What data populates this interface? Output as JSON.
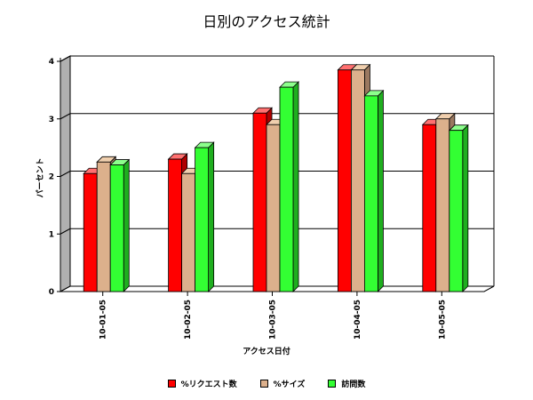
{
  "chart_data": {
    "type": "bar",
    "title": "日別のアクセス統計",
    "xlabel": "アクセス日付",
    "ylabel": "パーセント",
    "ylim": [
      0,
      4
    ],
    "yticks": [
      0,
      1,
      2,
      3,
      4
    ],
    "categories": [
      "10-01-05",
      "10-02-05",
      "10-03-05",
      "10-04-05",
      "10-05-05"
    ],
    "series": [
      {
        "name": "%リクエスト数",
        "values": [
          2.05,
          2.3,
          3.1,
          3.85,
          2.9
        ],
        "color": "#ff0000",
        "side": "#b00000",
        "top": "#ff7070"
      },
      {
        "name": "%サイズ",
        "values": [
          2.25,
          2.05,
          2.9,
          3.85,
          3.0
        ],
        "color": "#dcb08c",
        "side": "#9a7860",
        "top": "#f0cfae"
      },
      {
        "name": "訪問数",
        "values": [
          2.2,
          2.5,
          3.55,
          3.4,
          2.8
        ],
        "color": "#33ff33",
        "side": "#1fae1f",
        "top": "#8cff8c"
      }
    ],
    "grid": true,
    "legend_position": "bottom"
  }
}
